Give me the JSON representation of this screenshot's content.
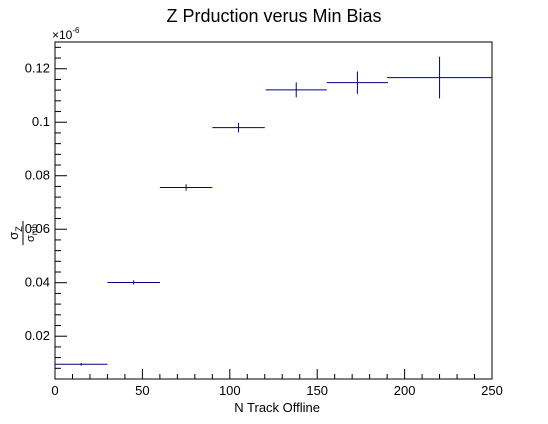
{
  "chart_data": {
    "type": "scatter",
    "title": "Z Prduction verus Min Bias",
    "xlabel": "N Track Offline",
    "ylabel_num": "σ",
    "ylabel_num_sub": "Z",
    "ylabel_den": "σ",
    "ylabel_den_sub": "mb",
    "exponent_label": "×10",
    "exponent_power": "-6",
    "xlim": [
      0,
      250
    ],
    "ylim": [
      0.004,
      0.13
    ],
    "x_ticks": [
      0,
      50,
      100,
      150,
      200,
      250
    ],
    "x_tick_labels": [
      "0",
      "50",
      "100",
      "150",
      "200",
      "250"
    ],
    "y_ticks": [
      0.02,
      0.04,
      0.06,
      0.08,
      0.1,
      0.12
    ],
    "y_tick_labels": [
      "0.02",
      "0.04",
      "0.06",
      "0.08",
      "0.1",
      "0.12"
    ],
    "grid": false,
    "color": "#000080",
    "points": [
      {
        "x": 15,
        "y": 0.0095,
        "xerr": 15,
        "yerr": 0.0005
      },
      {
        "x": 45,
        "y": 0.0401,
        "xerr": 15,
        "yerr": 0.0008
      },
      {
        "x": 75,
        "y": 0.0756,
        "xerr": 15,
        "yerr": 0.0012
      },
      {
        "x": 105,
        "y": 0.098,
        "xerr": 15,
        "yerr": 0.0018
      },
      {
        "x": 138,
        "y": 0.1121,
        "xerr": 17.5,
        "yerr": 0.0028
      },
      {
        "x": 173,
        "y": 0.1148,
        "xerr": 17.5,
        "yerr": 0.0042
      },
      {
        "x": 220,
        "y": 0.1167,
        "xerr": 30,
        "yerr": 0.0078
      }
    ]
  }
}
